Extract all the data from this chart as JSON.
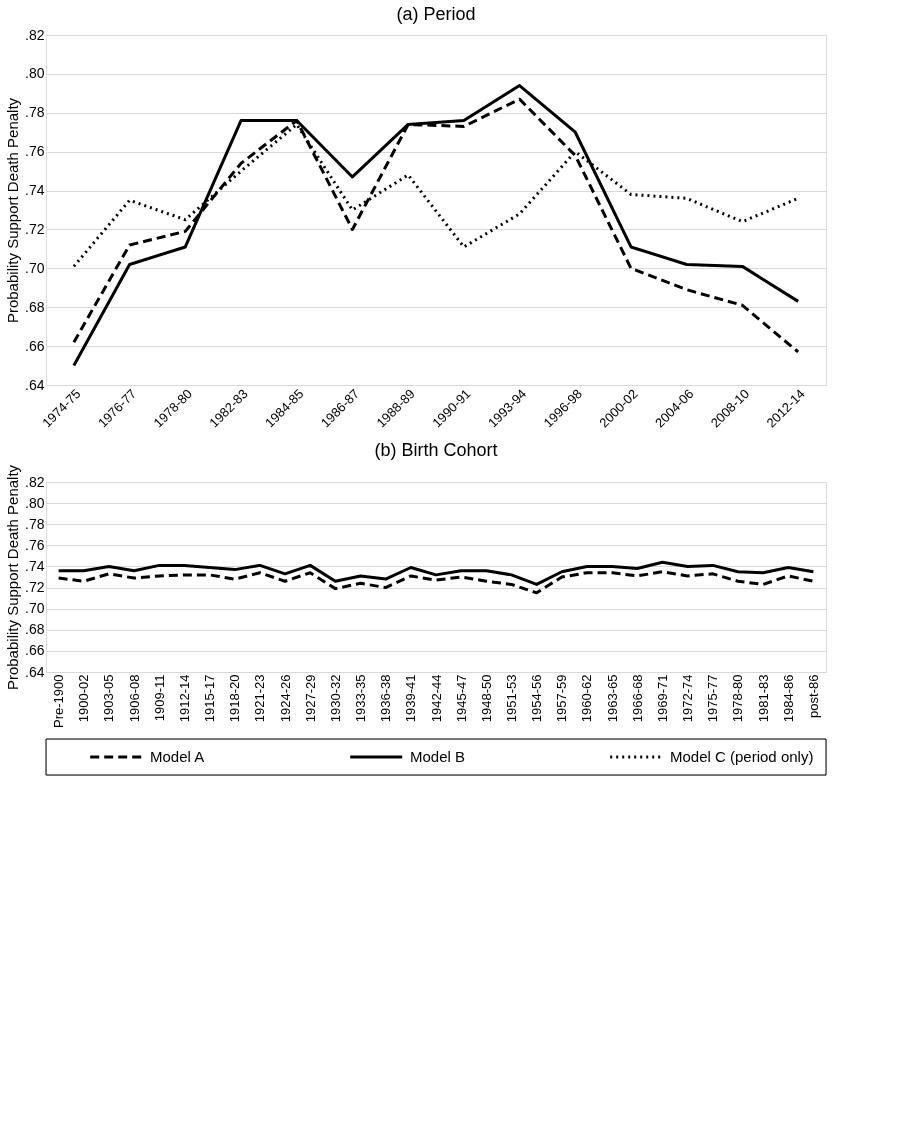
{
  "chart_data": [
    {
      "type": "line",
      "title": "(a) Period",
      "ylabel": "Probability Support Death Penalty",
      "categories": [
        "1974-75",
        "1976-77",
        "1978-80",
        "1982-83",
        "1984-85",
        "1986-87",
        "1988-89",
        "1990-91",
        "1993-94",
        "1996-98",
        "2000-02",
        "2004-06",
        "2008-10",
        "2012-14"
      ],
      "series": [
        {
          "name": "Model A",
          "color": "#000000",
          "line_style": "dashed",
          "values": [
            0.662,
            0.712,
            0.719,
            0.754,
            0.776,
            0.72,
            0.774,
            0.773,
            0.787,
            0.758,
            0.7,
            0.689,
            0.681,
            0.657
          ]
        },
        {
          "name": "Model B",
          "color": "#000000",
          "line_style": "solid",
          "values": [
            0.65,
            0.702,
            0.711,
            0.776,
            0.776,
            0.747,
            0.774,
            0.776,
            0.794,
            0.77,
            0.711,
            0.702,
            0.701,
            0.683
          ]
        },
        {
          "name": "Model C (period only)",
          "color": "#000000",
          "line_style": "dotted",
          "values": [
            0.701,
            0.735,
            0.725,
            0.75,
            0.774,
            0.73,
            0.748,
            0.711,
            0.728,
            0.76,
            0.738,
            0.736,
            0.724,
            0.736
          ]
        }
      ],
      "ylim": [
        0.64,
        0.82
      ],
      "yticks": [
        {
          "value": 0.64,
          "label": ".64"
        },
        {
          "value": 0.66,
          "label": ".66"
        },
        {
          "value": 0.68,
          "label": ".68"
        },
        {
          "value": 0.7,
          "label": ".70"
        },
        {
          "value": 0.72,
          "label": ".72"
        },
        {
          "value": 0.74,
          "label": ".74"
        },
        {
          "value": 0.76,
          "label": ".76"
        },
        {
          "value": 0.78,
          "label": ".78"
        },
        {
          "value": 0.8,
          "label": ".80"
        },
        {
          "value": 0.82,
          "label": ".82"
        }
      ],
      "grid": "y",
      "legend": "bottom",
      "marker": "none"
    },
    {
      "type": "line",
      "title": "(b) Birth Cohort",
      "ylabel": "Probability Support Death Penalty",
      "categories": [
        "Pre-1900",
        "1900-02",
        "1903-05",
        "1906-08",
        "1909-11",
        "1912-14",
        "1915-17",
        "1918-20",
        "1921-23",
        "1924-26",
        "1927-29",
        "1930-32",
        "1933-35",
        "1936-38",
        "1939-41",
        "1942-44",
        "1945-47",
        "1948-50",
        "1951-53",
        "1954-56",
        "1957-59",
        "1960-62",
        "1963-65",
        "1966-68",
        "1969-71",
        "1972-74",
        "1975-77",
        "1978-80",
        "1981-83",
        "1984-86",
        "post-86"
      ],
      "series": [
        {
          "name": "Model A",
          "color": "#000000",
          "line_style": "dashed",
          "values": [
            0.729,
            0.726,
            0.733,
            0.729,
            0.731,
            0.732,
            0.732,
            0.728,
            0.734,
            0.726,
            0.734,
            0.719,
            0.724,
            0.72,
            0.731,
            0.727,
            0.73,
            0.726,
            0.723,
            0.715,
            0.73,
            0.734,
            0.734,
            0.731,
            0.735,
            0.731,
            0.733,
            0.726,
            0.723,
            0.731,
            0.726
          ]
        },
        {
          "name": "Model B",
          "color": "#000000",
          "line_style": "solid",
          "values": [
            0.736,
            0.736,
            0.74,
            0.736,
            0.741,
            0.741,
            0.739,
            0.737,
            0.741,
            0.733,
            0.741,
            0.726,
            0.731,
            0.728,
            0.739,
            0.732,
            0.736,
            0.736,
            0.732,
            0.723,
            0.735,
            0.74,
            0.74,
            0.738,
            0.744,
            0.74,
            0.741,
            0.735,
            0.734,
            0.739,
            0.735
          ]
        }
      ],
      "ylim": [
        0.64,
        0.82
      ],
      "yticks": [
        {
          "value": 0.64,
          "label": ".64"
        },
        {
          "value": 0.66,
          "label": ".66"
        },
        {
          "value": 0.68,
          "label": ".68"
        },
        {
          "value": 0.7,
          "label": ".70"
        },
        {
          "value": 0.72,
          "label": ".72"
        },
        {
          "value": 0.74,
          "label": ".74"
        },
        {
          "value": 0.76,
          "label": ".76"
        },
        {
          "value": 0.78,
          "label": ".78"
        },
        {
          "value": 0.8,
          "label": ".80"
        },
        {
          "value": 0.82,
          "label": ".82"
        }
      ],
      "grid": "y",
      "legend": "bottom",
      "marker": "none"
    }
  ]
}
